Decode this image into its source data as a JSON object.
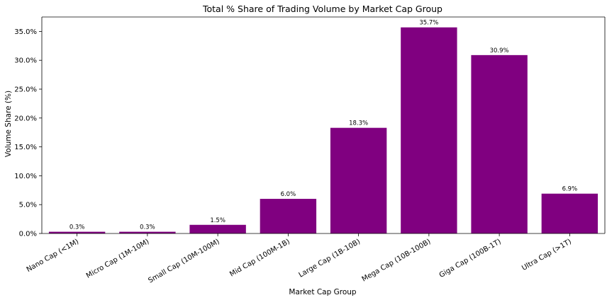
{
  "chart_data": {
    "type": "bar",
    "title": "Total % Share of Trading Volume by Market Cap Group",
    "xlabel": "Market Cap Group",
    "ylabel": "Volume Share (%)",
    "categories": [
      "Nano Cap (<1M)",
      "Micro Cap (1M-10M)",
      "Small Cap (10M-100M)",
      "Mid Cap (100M-1B)",
      "Large Cap (1B-10B)",
      "Mega Cap (10B-100B)",
      "Giga Cap (100B-1T)",
      "Ultra Cap (>1T)"
    ],
    "values": [
      0.3,
      0.3,
      1.5,
      6.0,
      18.3,
      35.7,
      30.9,
      6.9
    ],
    "value_labels": [
      "0.3%",
      "0.3%",
      "1.5%",
      "6.0%",
      "18.3%",
      "35.7%",
      "30.9%",
      "6.9%"
    ],
    "ylim": [
      0,
      37.5
    ],
    "yticks": [
      0,
      5,
      10,
      15,
      20,
      25,
      30,
      35
    ],
    "ytick_labels": [
      "0.0%",
      "5.0%",
      "10.0%",
      "15.0%",
      "20.0%",
      "25.0%",
      "30.0%",
      "35.0%"
    ],
    "grid": false,
    "bar_color": "#800080"
  }
}
